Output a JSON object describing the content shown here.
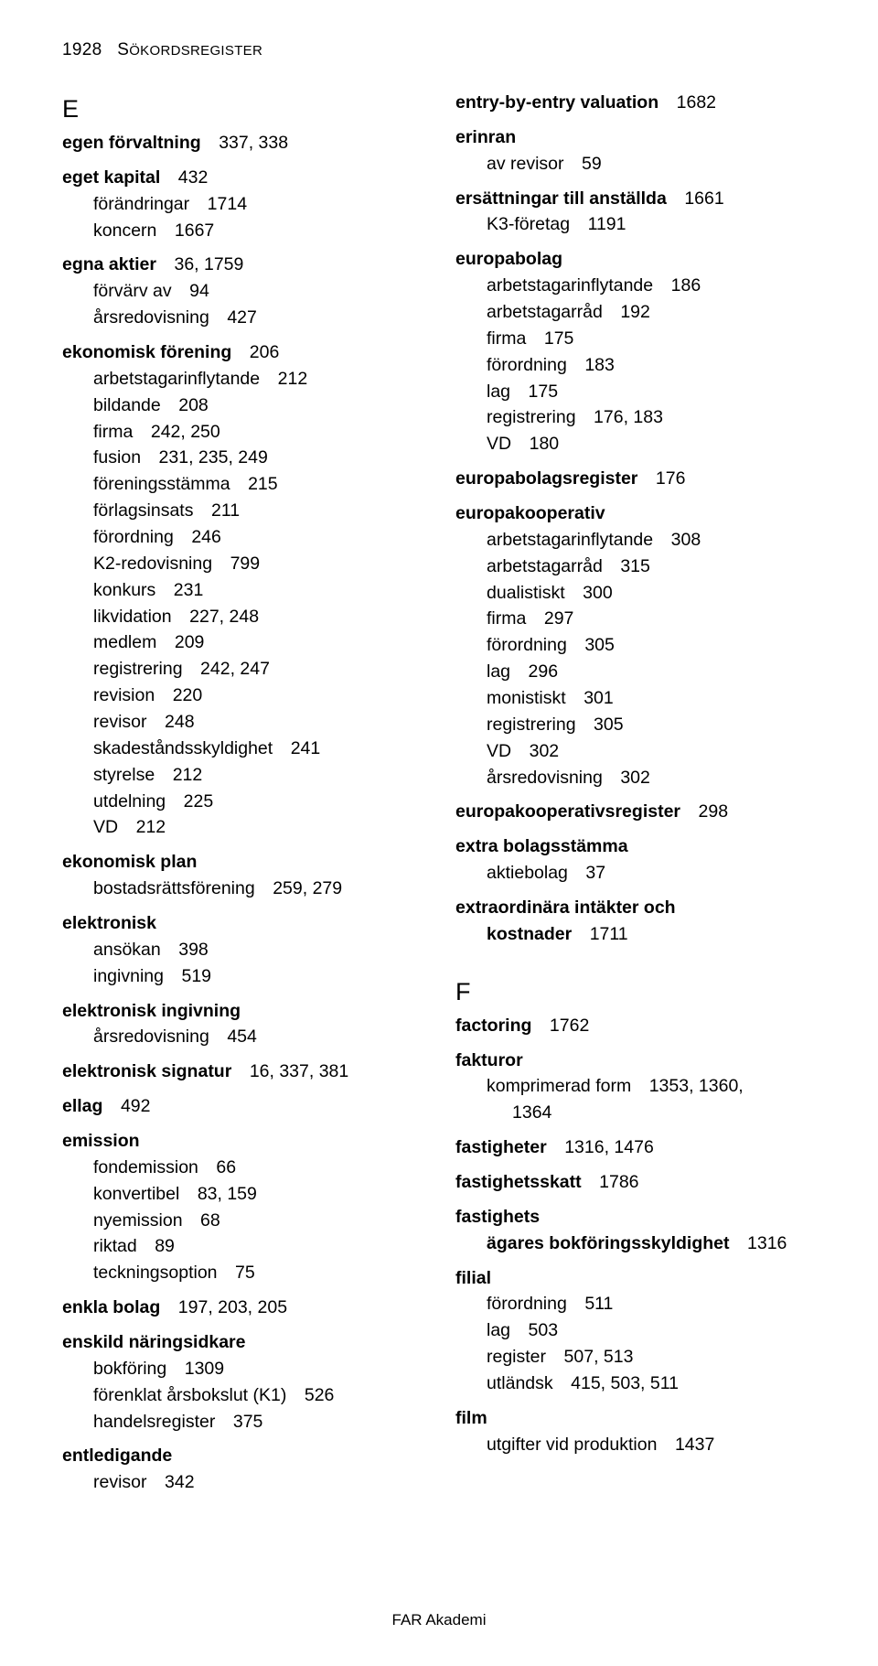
{
  "header": {
    "pagenum": "1928",
    "title_sc": "S",
    "title_rest": "ÖKORDSREGISTER"
  },
  "footer": "FAR Akademi",
  "left": {
    "letter": "E",
    "entries": [
      {
        "term": "egen förvaltning",
        "pages": "337, 338"
      },
      {
        "term": "eget kapital",
        "pages": "432",
        "subs": [
          {
            "label": "förändringar",
            "pages": "1714"
          },
          {
            "label": "koncern",
            "pages": "1667"
          }
        ]
      },
      {
        "term": "egna aktier",
        "pages": "36, 1759",
        "subs": [
          {
            "label": "förvärv av",
            "pages": "94"
          },
          {
            "label": "årsredovisning",
            "pages": "427"
          }
        ]
      },
      {
        "term": "ekonomisk förening",
        "pages": "206",
        "subs": [
          {
            "label": "arbetstagarinflytande",
            "pages": "212"
          },
          {
            "label": "bildande",
            "pages": "208"
          },
          {
            "label": "firma",
            "pages": "242, 250"
          },
          {
            "label": "fusion",
            "pages": "231, 235, 249"
          },
          {
            "label": "föreningsstämma",
            "pages": "215"
          },
          {
            "label": "förlagsinsats",
            "pages": "211"
          },
          {
            "label": "förordning",
            "pages": "246"
          },
          {
            "label": "K2-redovisning",
            "pages": "799"
          },
          {
            "label": "konkurs",
            "pages": "231"
          },
          {
            "label": "likvidation",
            "pages": "227, 248"
          },
          {
            "label": "medlem",
            "pages": "209"
          },
          {
            "label": "registrering",
            "pages": "242, 247"
          },
          {
            "label": "revision",
            "pages": "220"
          },
          {
            "label": "revisor",
            "pages": "248"
          },
          {
            "label": "skadeståndsskyldighet",
            "pages": "241"
          },
          {
            "label": "styrelse",
            "pages": "212"
          },
          {
            "label": "utdelning",
            "pages": "225"
          },
          {
            "label": "VD",
            "pages": "212"
          }
        ]
      },
      {
        "term": "ekonomisk plan",
        "pages": "",
        "subs": [
          {
            "label": "bostadsrättsförening",
            "pages": "259, 279"
          }
        ]
      },
      {
        "term": "elektronisk",
        "pages": "",
        "subs": [
          {
            "label": "ansökan",
            "pages": "398"
          },
          {
            "label": "ingivning",
            "pages": "519"
          }
        ]
      },
      {
        "term": "elektronisk ingivning",
        "pages": "",
        "subs": [
          {
            "label": "årsredovisning",
            "pages": "454"
          }
        ]
      },
      {
        "term": "elektronisk signatur",
        "pages": "16, 337, 381"
      },
      {
        "term": "ellag",
        "pages": "492"
      },
      {
        "term": "emission",
        "pages": "",
        "subs": [
          {
            "label": "fondemission",
            "pages": "66"
          },
          {
            "label": "konvertibel",
            "pages": "83, 159"
          },
          {
            "label": "nyemission",
            "pages": "68"
          },
          {
            "label": "riktad",
            "pages": "89"
          },
          {
            "label": "teckningsoption",
            "pages": "75"
          }
        ]
      },
      {
        "term": "enkla bolag",
        "pages": "197, 203, 205"
      },
      {
        "term": "enskild näringsidkare",
        "pages": "",
        "subs": [
          {
            "label": "bokföring",
            "pages": "1309"
          },
          {
            "label": "förenklat årsbokslut (K1)",
            "pages": "526"
          },
          {
            "label": "handelsregister",
            "pages": "375"
          }
        ]
      },
      {
        "term": "entledigande",
        "pages": "",
        "subs": [
          {
            "label": "revisor",
            "pages": "342"
          }
        ]
      }
    ]
  },
  "right": {
    "entries_top": [
      {
        "term": "entry-by-entry valuation",
        "pages": "1682"
      },
      {
        "term": "erinran",
        "pages": "",
        "subs": [
          {
            "label": "av revisor",
            "pages": "59"
          }
        ]
      },
      {
        "term": "ersättningar till anställda",
        "pages": "1661",
        "subs": [
          {
            "label": "K3-företag",
            "pages": "1191"
          }
        ]
      },
      {
        "term": "europabolag",
        "pages": "",
        "subs": [
          {
            "label": "arbetstagarinflytande",
            "pages": "186"
          },
          {
            "label": "arbetstagarråd",
            "pages": "192"
          },
          {
            "label": "firma",
            "pages": "175"
          },
          {
            "label": "förordning",
            "pages": "183"
          },
          {
            "label": "lag",
            "pages": "175"
          },
          {
            "label": "registrering",
            "pages": "176, 183"
          },
          {
            "label": "VD",
            "pages": "180"
          }
        ]
      },
      {
        "term": "europabolagsregister",
        "pages": "176"
      },
      {
        "term": "europakooperativ",
        "pages": "",
        "subs": [
          {
            "label": "arbetstagarinflytande",
            "pages": "308"
          },
          {
            "label": "arbetstagarråd",
            "pages": "315"
          },
          {
            "label": "dualistiskt",
            "pages": "300"
          },
          {
            "label": "firma",
            "pages": "297"
          },
          {
            "label": "förordning",
            "pages": "305"
          },
          {
            "label": "lag",
            "pages": "296"
          },
          {
            "label": "monistiskt",
            "pages": "301"
          },
          {
            "label": "registrering",
            "pages": "305"
          },
          {
            "label": "VD",
            "pages": "302"
          },
          {
            "label": "årsredovisning",
            "pages": "302"
          }
        ]
      },
      {
        "term": "europakooperativsregister",
        "pages": "298"
      },
      {
        "term": "extra bolagsstämma",
        "pages": "",
        "subs": [
          {
            "label": "aktiebolag",
            "pages": "37"
          }
        ]
      },
      {
        "term": "extraordinära intäkter och kostnader",
        "pages": "1711",
        "hang": true,
        "break_after": "och"
      }
    ],
    "letter": "F",
    "entries_bottom": [
      {
        "term": "factoring",
        "pages": "1762"
      },
      {
        "term": "fakturor",
        "pages": "",
        "subs": [
          {
            "label": "komprimerad form",
            "pages": "1353, 1360, 1364",
            "hang": true
          }
        ]
      },
      {
        "term": "fastigheter",
        "pages": "1316, 1476"
      },
      {
        "term": "fastighetsskatt",
        "pages": "1786"
      },
      {
        "term": "fastighetsägares bokföringsskyldighet",
        "pages": "1316",
        "hang": true,
        "break_after": "bokförings-"
      },
      {
        "term": "filial",
        "pages": "",
        "subs": [
          {
            "label": "förordning",
            "pages": "511"
          },
          {
            "label": "lag",
            "pages": "503"
          },
          {
            "label": "register",
            "pages": "507, 513"
          },
          {
            "label": "utländsk",
            "pages": "415, 503, 511"
          }
        ]
      },
      {
        "term": "film",
        "pages": "",
        "subs": [
          {
            "label": "utgifter vid produktion",
            "pages": "1437"
          }
        ]
      }
    ]
  }
}
